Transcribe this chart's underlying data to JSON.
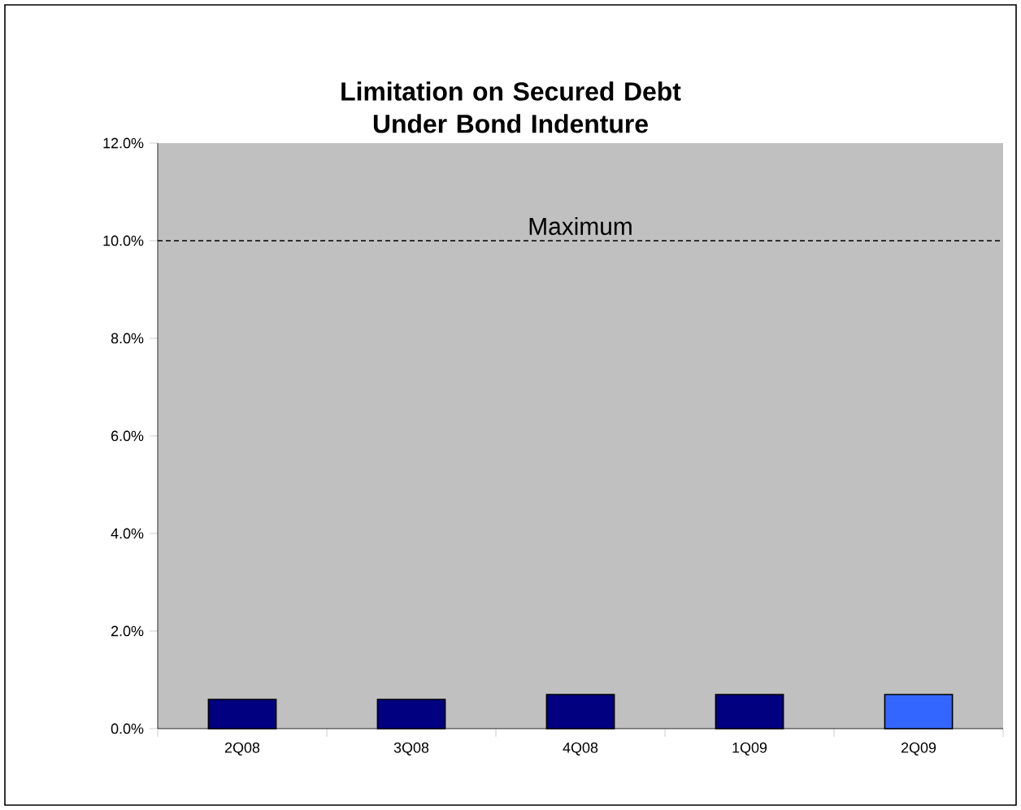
{
  "chart_data": {
    "type": "bar",
    "title": "Limitation on Secured Debt Under Bond Indenture",
    "categories": [
      "2Q08",
      "3Q08",
      "4Q08",
      "1Q09",
      "2Q09"
    ],
    "values": [
      0.6,
      0.6,
      0.7,
      0.7,
      0.7
    ],
    "colors": [
      "#000080",
      "#000080",
      "#000080",
      "#000080",
      "#3366ff"
    ],
    "ylim": [
      0,
      12
    ],
    "yticks": [
      {
        "value": 0,
        "label": "0.0%"
      },
      {
        "value": 2,
        "label": "2.0%"
      },
      {
        "value": 4,
        "label": "4.0%"
      },
      {
        "value": 6,
        "label": "6.0%"
      },
      {
        "value": 8,
        "label": "8.0%"
      },
      {
        "value": 10,
        "label": "10.0%"
      },
      {
        "value": 12,
        "label": "12.0%"
      }
    ],
    "ref_lines": [
      {
        "axis": "y",
        "value": 10,
        "label": "Maximum",
        "line_style": "dashed",
        "color": "#000000"
      }
    ],
    "grid": false
  }
}
